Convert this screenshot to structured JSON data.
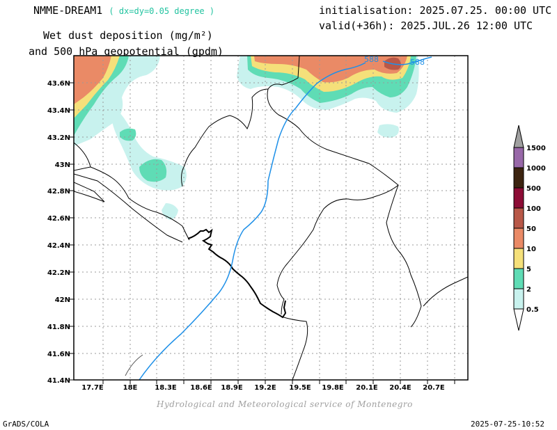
{
  "header": {
    "model": "NMME-DREAM1",
    "resolution": "( dx=dy=0.05 degree )",
    "init": "initialisation: 2025.07.25. 00:00 UTC",
    "valid": "valid(+36h): 2025.JUL.26 12:00 UTC",
    "variable_line1": "Wet dust deposition (mg/m²)",
    "variable_line2": "and 500 hPa geopotential (gpdm)"
  },
  "map": {
    "lon_labels": [
      "17.7E",
      "18E",
      "18.3E",
      "18.6E",
      "18.9E",
      "19.2E",
      "19.5E",
      "19.8E",
      "20.1E",
      "20.4E",
      "20.7E"
    ],
    "lat_labels": [
      "43.6N",
      "43.4N",
      "43.2N",
      "43N",
      "42.8N",
      "42.6N",
      "42.4N",
      "42.2N",
      "42N",
      "41.8N",
      "41.6N",
      "41.4N"
    ],
    "contour_label": "588",
    "colors": {
      "c0_5": "#c8f2ee",
      "c2": "#5fdcb5",
      "c5": "#f5e07a",
      "c10": "#ea8a66",
      "c50": "#b85848",
      "c100": "#8c0c35",
      "c500": "#3c2410",
      "c1000": "#9868a8",
      "c1500": "#a0a0a0",
      "contour": "#1e90e8"
    }
  },
  "colorbar": {
    "labels": [
      "1500",
      "1000",
      "500",
      "100",
      "50",
      "10",
      "5",
      "2",
      "0.5"
    ],
    "colors": [
      "#9868a8",
      "#3c2410",
      "#8c0c35",
      "#b85848",
      "#ea8a66",
      "#f5e07a",
      "#5fdcb5",
      "#c8f2ee"
    ]
  },
  "footer": {
    "credit": "Hydrological and Meteorological service of Montenegro",
    "left": "GrADS/COLA",
    "right": "2025-07-25-10:52"
  }
}
